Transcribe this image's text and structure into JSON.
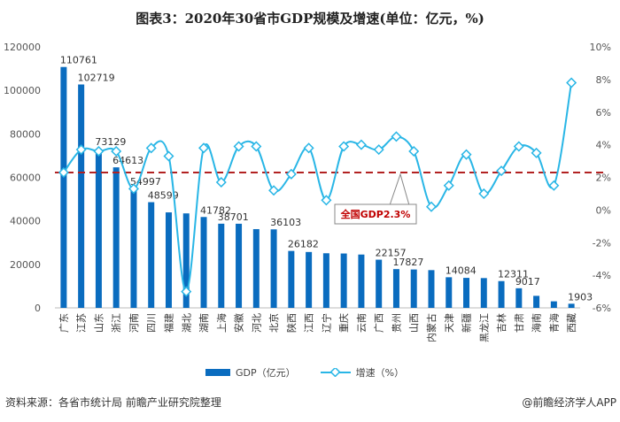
{
  "title": "图表3：2020年30省市GDP规模及增速(单位：亿元，%)",
  "source": "资料来源：各省市统计局 前瞻产业研究院整理",
  "brand": "@前瞻经济学人APP",
  "colors": {
    "bar": "#0a6cbf",
    "line": "#29b6e6",
    "avg": "#b22222",
    "annotation": "#c00000"
  },
  "chart_data": {
    "type": "bar+line",
    "title": "图表3：2020年30省市GDP规模及增速(单位：亿元，%)",
    "categories": [
      "广东",
      "江苏",
      "山东",
      "浙江",
      "河南",
      "四川",
      "福建",
      "湖北",
      "湖南",
      "上海",
      "安徽",
      "河北",
      "北京",
      "陕西",
      "江西",
      "辽宁",
      "重庆",
      "云南",
      "广西",
      "贵州",
      "山西",
      "内蒙古",
      "天津",
      "新疆",
      "黑龙江",
      "吉林",
      "甘肃",
      "海南",
      "青海",
      "西藏"
    ],
    "series": [
      {
        "name": "GDP（亿元）",
        "type": "bar",
        "axis": "left",
        "values": [
          110761,
          102719,
          73129,
          64613,
          54997,
          48599,
          43904,
          43443,
          41782,
          38701,
          38681,
          36207,
          36103,
          26182,
          25692,
          25115,
          25003,
          24522,
          22157,
          17827,
          17652,
          17360,
          14084,
          13798,
          13699,
          12311,
          9017,
          5532,
          3006,
          1903
        ],
        "data_labels": [
          "110761",
          "102719",
          "73129",
          "64613",
          "54997",
          "48599",
          null,
          null,
          "41782",
          "38701",
          null,
          null,
          "36103",
          "26182",
          null,
          null,
          null,
          null,
          "22157",
          "17827",
          null,
          null,
          "14084",
          null,
          null,
          "12311",
          "9017",
          null,
          null,
          "1903"
        ]
      },
      {
        "name": "增速（%）",
        "type": "line",
        "axis": "right",
        "values": [
          2.3,
          3.7,
          3.6,
          3.6,
          1.3,
          3.8,
          3.3,
          -5.0,
          3.8,
          1.7,
          3.9,
          3.9,
          1.2,
          2.2,
          3.8,
          0.6,
          3.9,
          4.0,
          3.7,
          4.5,
          3.6,
          0.2,
          1.5,
          3.4,
          1.0,
          2.4,
          3.9,
          3.5,
          1.5,
          7.8
        ]
      }
    ],
    "reference_line": {
      "value": 2.3,
      "axis": "right",
      "style": "dashed"
    },
    "annotation": "全国GDP2.3%",
    "y_left": {
      "range": [
        0,
        120000
      ],
      "ticks": [
        "0",
        "20000",
        "40000",
        "60000",
        "80000",
        "100000",
        "120000"
      ]
    },
    "y_right": {
      "range": [
        -6,
        10
      ],
      "ticks": [
        "-6%",
        "-4%",
        "-2%",
        "0%",
        "2%",
        "4%",
        "6%",
        "8%",
        "10%"
      ]
    },
    "grid": false,
    "legend": "bottom"
  }
}
